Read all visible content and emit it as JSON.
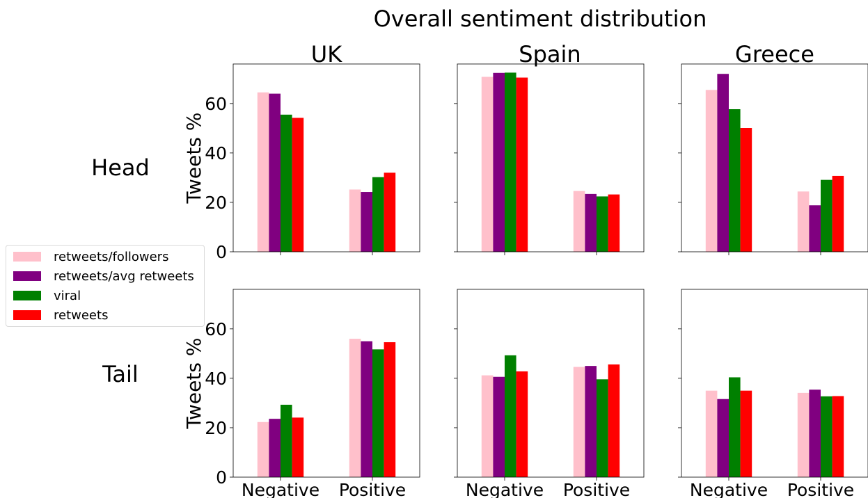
{
  "title": "Overall sentiment distribution",
  "columns": [
    "UK",
    "Spain",
    "Greece"
  ],
  "rows": [
    "Head",
    "Tail"
  ],
  "ylabel": "Tweets %",
  "yticks": [
    "0",
    "20",
    "40",
    "60"
  ],
  "legend": {
    "placement": "left",
    "items": [
      {
        "label": "retweets/followers",
        "color": "#ffc0cb"
      },
      {
        "label": "retweets/avg retweets",
        "color": "#800080"
      },
      {
        "label": "viral",
        "color": "#008000"
      },
      {
        "label": "retweets",
        "color": "#ff0000"
      }
    ]
  },
  "chart_data": {
    "type": "bar",
    "title": "Overall sentiment distribution",
    "categories": [
      "Negative",
      "Positive"
    ],
    "series_names": [
      "retweets/followers",
      "retweets/avg retweets",
      "viral",
      "retweets"
    ],
    "series_colors": [
      "#ffc0cb",
      "#800080",
      "#008000",
      "#ff0000"
    ],
    "ylabel": "Tweets %",
    "ylim": [
      0,
      76
    ],
    "grid": false,
    "panels": [
      {
        "row": "Head",
        "column": "UK",
        "values": [
          [
            64.5,
            25.2
          ],
          [
            64.0,
            24.2
          ],
          [
            55.5,
            30.2
          ],
          [
            54.2,
            32.0
          ]
        ]
      },
      {
        "row": "Head",
        "column": "Spain",
        "values": [
          [
            70.8,
            24.6
          ],
          [
            72.4,
            23.4
          ],
          [
            72.5,
            22.4
          ],
          [
            70.5,
            23.2
          ]
        ]
      },
      {
        "row": "Head",
        "column": "Greece",
        "values": [
          [
            65.5,
            24.4
          ],
          [
            72.0,
            18.8
          ],
          [
            57.7,
            29.1
          ],
          [
            50.1,
            30.7
          ]
        ]
      },
      {
        "row": "Tail",
        "column": "UK",
        "values": [
          [
            22.3,
            56.0
          ],
          [
            23.6,
            55.0
          ],
          [
            29.3,
            51.7
          ],
          [
            24.1,
            54.6
          ]
        ]
      },
      {
        "row": "Tail",
        "column": "Spain",
        "values": [
          [
            41.2,
            44.6
          ],
          [
            40.6,
            45.0
          ],
          [
            49.3,
            39.6
          ],
          [
            42.8,
            45.6
          ]
        ]
      },
      {
        "row": "Tail",
        "column": "Greece",
        "values": [
          [
            35.0,
            34.1
          ],
          [
            31.6,
            35.4
          ],
          [
            40.4,
            32.7
          ],
          [
            35.0,
            32.8
          ]
        ]
      }
    ]
  }
}
